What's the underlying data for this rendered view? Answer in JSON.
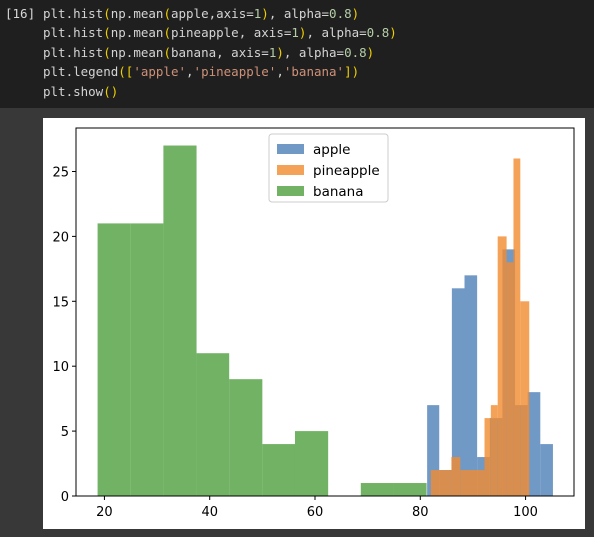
{
  "cell": {
    "prompt": "[16]",
    "code_lines": [
      [
        {
          "t": "plt.hist",
          "c": "fn"
        },
        {
          "t": "(",
          "c": "paren"
        },
        {
          "t": "np.mean",
          "c": "fn"
        },
        {
          "t": "(",
          "c": "paren"
        },
        {
          "t": "apple,axis=",
          "c": "fn"
        },
        {
          "t": "1",
          "c": "num"
        },
        {
          "t": ")",
          "c": "paren"
        },
        {
          "t": ", alpha=",
          "c": "fn"
        },
        {
          "t": "0.8",
          "c": "num"
        },
        {
          "t": ")",
          "c": "paren"
        }
      ],
      [
        {
          "t": "plt.hist",
          "c": "fn"
        },
        {
          "t": "(",
          "c": "paren"
        },
        {
          "t": "np.mean",
          "c": "fn"
        },
        {
          "t": "(",
          "c": "paren"
        },
        {
          "t": "pineapple, axis=",
          "c": "fn"
        },
        {
          "t": "1",
          "c": "num"
        },
        {
          "t": ")",
          "c": "paren"
        },
        {
          "t": ", alpha=",
          "c": "fn"
        },
        {
          "t": "0.8",
          "c": "num"
        },
        {
          "t": ")",
          "c": "paren"
        }
      ],
      [
        {
          "t": "plt.hist",
          "c": "fn"
        },
        {
          "t": "(",
          "c": "paren"
        },
        {
          "t": "np.mean",
          "c": "fn"
        },
        {
          "t": "(",
          "c": "paren"
        },
        {
          "t": "banana, axis=",
          "c": "fn"
        },
        {
          "t": "1",
          "c": "num"
        },
        {
          "t": ")",
          "c": "paren"
        },
        {
          "t": ", alpha=",
          "c": "fn"
        },
        {
          "t": "0.8",
          "c": "num"
        },
        {
          "t": ")",
          "c": "paren"
        }
      ],
      [
        {
          "t": "plt.legend",
          "c": "fn"
        },
        {
          "t": "(",
          "c": "paren"
        },
        {
          "t": "[",
          "c": "paren"
        },
        {
          "t": "'apple'",
          "c": "str"
        },
        {
          "t": ",",
          "c": "fn"
        },
        {
          "t": "'pineapple'",
          "c": "str"
        },
        {
          "t": ",",
          "c": "fn"
        },
        {
          "t": "'banana'",
          "c": "str"
        },
        {
          "t": "]",
          "c": "paren"
        },
        {
          "t": ")",
          "c": "paren"
        }
      ],
      [
        {
          "t": "plt.show",
          "c": "fn"
        },
        {
          "t": "()",
          "c": "paren"
        }
      ]
    ]
  },
  "colors": {
    "apple": "#4e80b7",
    "pineapple": "#f28b2f",
    "banana": "#4e9f3d"
  },
  "chart_data": {
    "type": "bar",
    "title": "",
    "xlabel": "",
    "ylabel": "",
    "xlim": [
      14.6,
      109.2
    ],
    "ylim": [
      0,
      28.35
    ],
    "xticks": [
      20,
      40,
      60,
      80,
      100
    ],
    "yticks": [
      0,
      5,
      10,
      15,
      20,
      25
    ],
    "legend_position": "top-center",
    "alpha": 0.8,
    "series": [
      {
        "name": "banana",
        "bins": [
          {
            "x0": 18.7,
            "x1": 25.0,
            "count": 21
          },
          {
            "x0": 25.0,
            "x1": 31.2,
            "count": 21
          },
          {
            "x0": 31.2,
            "x1": 37.5,
            "count": 27
          },
          {
            "x0": 37.5,
            "x1": 43.7,
            "count": 11
          },
          {
            "x0": 43.7,
            "x1": 50.0,
            "count": 9
          },
          {
            "x0": 50.0,
            "x1": 56.2,
            "count": 4
          },
          {
            "x0": 56.2,
            "x1": 62.5,
            "count": 5
          },
          {
            "x0": 62.5,
            "x1": 68.7,
            "count": 0
          },
          {
            "x0": 68.7,
            "x1": 75.0,
            "count": 1
          },
          {
            "x0": 75.0,
            "x1": 81.2,
            "count": 1
          }
        ]
      },
      {
        "name": "apple",
        "bins": [
          {
            "x0": 81.3,
            "x1": 83.6,
            "count": 7
          },
          {
            "x0": 83.6,
            "x1": 86.0,
            "count": 2
          },
          {
            "x0": 86.0,
            "x1": 88.4,
            "count": 16
          },
          {
            "x0": 88.4,
            "x1": 90.8,
            "count": 17
          },
          {
            "x0": 90.8,
            "x1": 93.2,
            "count": 3
          },
          {
            "x0": 93.2,
            "x1": 95.6,
            "count": 6
          },
          {
            "x0": 95.6,
            "x1": 98.0,
            "count": 19
          },
          {
            "x0": 98.0,
            "x1": 100.4,
            "count": 7
          },
          {
            "x0": 100.4,
            "x1": 102.8,
            "count": 8
          },
          {
            "x0": 102.8,
            "x1": 105.2,
            "count": 4
          }
        ]
      },
      {
        "name": "pineapple",
        "bins": [
          {
            "x0": 82.0,
            "x1": 85.9,
            "count": 2
          },
          {
            "x0": 85.9,
            "x1": 87.6,
            "count": 3
          },
          {
            "x0": 87.6,
            "x1": 92.2,
            "count": 2
          },
          {
            "x0": 92.2,
            "x1": 93.4,
            "count": 6
          },
          {
            "x0": 93.4,
            "x1": 94.7,
            "count": 7
          },
          {
            "x0": 94.7,
            "x1": 96.4,
            "count": 20
          },
          {
            "x0": 96.4,
            "x1": 97.7,
            "count": 18
          },
          {
            "x0": 97.7,
            "x1": 99.0,
            "count": 26
          },
          {
            "x0": 99.0,
            "x1": 100.7,
            "count": 15
          }
        ]
      }
    ]
  }
}
